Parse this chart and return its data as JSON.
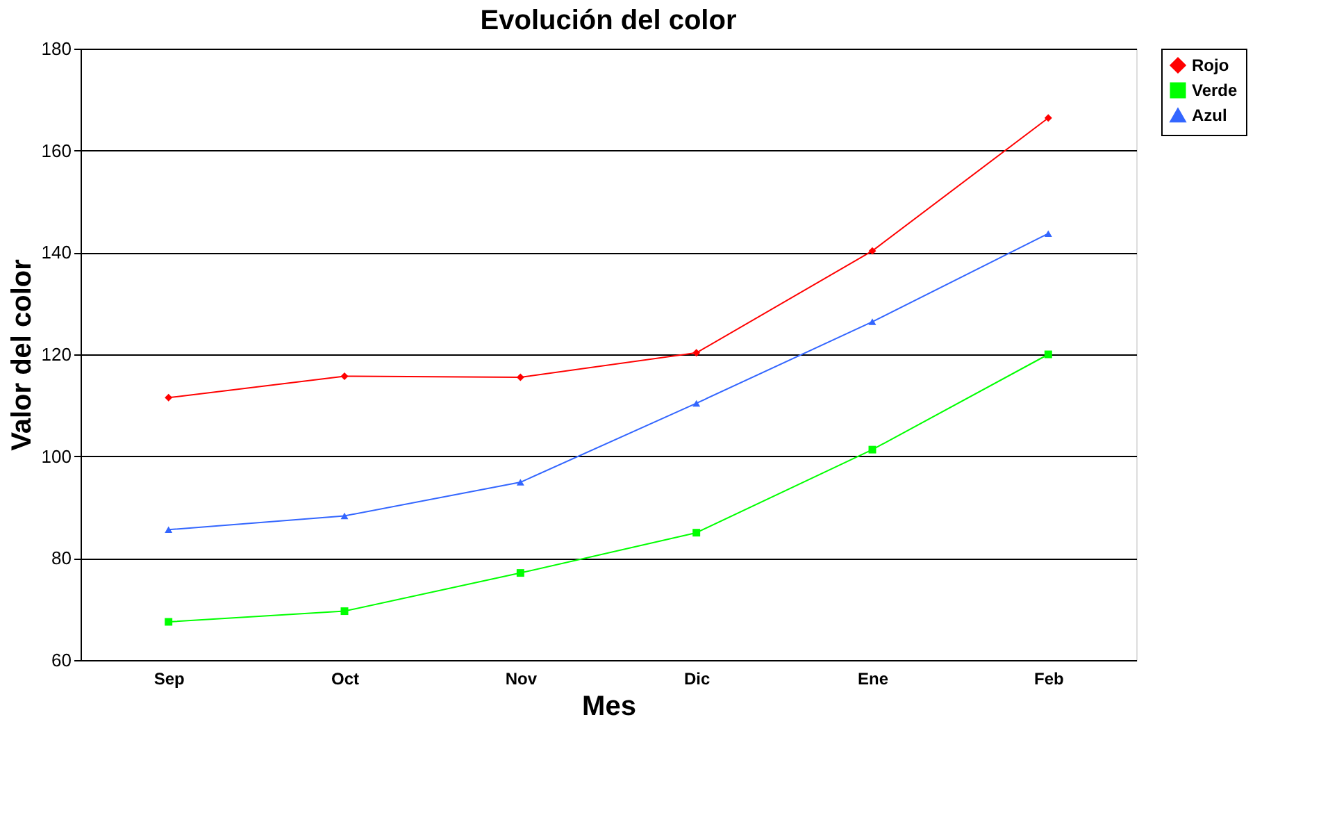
{
  "chart_data": {
    "type": "line",
    "title": "Evolución del color",
    "xlabel": "Mes",
    "ylabel": "Valor del color",
    "categories": [
      "Sep",
      "Oct",
      "Nov",
      "Dic",
      "Ene",
      "Feb"
    ],
    "series": [
      {
        "name": "Rojo",
        "color": "#ff0000",
        "marker": "diamond",
        "values": [
          111.5,
          115.7,
          115.5,
          120.3,
          140.3,
          166.4
        ]
      },
      {
        "name": "Verde",
        "color": "#00ff00",
        "marker": "square",
        "values": [
          67.5,
          69.6,
          77.1,
          85,
          101.3,
          120
        ]
      },
      {
        "name": "Azul",
        "color": "#3366ff",
        "marker": "triangle",
        "values": [
          85.6,
          88.3,
          94.9,
          110.4,
          126.4,
          143.7
        ]
      }
    ],
    "ylim": [
      60,
      180
    ],
    "yticks": [
      60,
      80,
      100,
      120,
      140,
      160,
      180
    ],
    "grid": "y",
    "legend": "right",
    "line_style": "solid"
  }
}
